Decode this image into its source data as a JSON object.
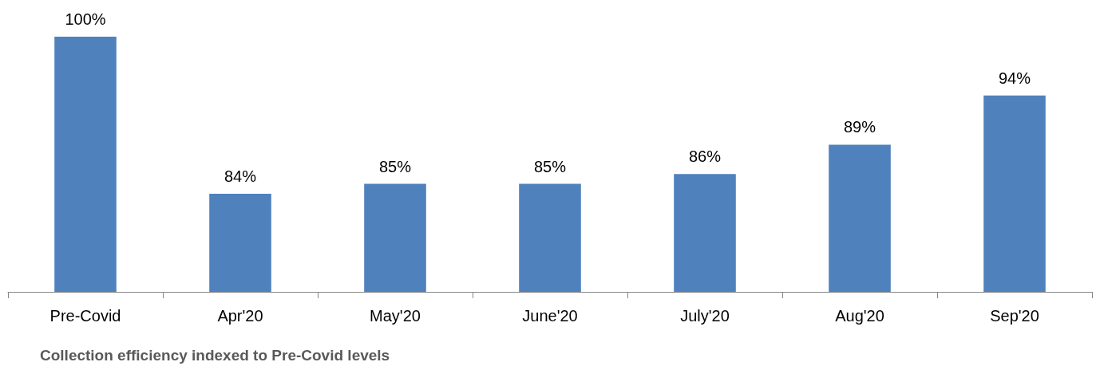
{
  "chart_data": {
    "type": "bar",
    "categories": [
      "Pre-Covid",
      "Apr'20",
      "May'20",
      "June'20",
      "July'20",
      "Aug'20",
      "Sep'20"
    ],
    "values": [
      100,
      84,
      85,
      85,
      86,
      89,
      94
    ],
    "color": "#4f81bd",
    "value_labels": [
      "100%",
      "84%",
      "85%",
      "85%",
      "86%",
      "89%",
      "94%"
    ],
    "ylim": [
      74,
      100
    ],
    "tick_labels": "x",
    "annotations": [
      "Collection efficiency indexed to Pre-Covid levels"
    ]
  }
}
